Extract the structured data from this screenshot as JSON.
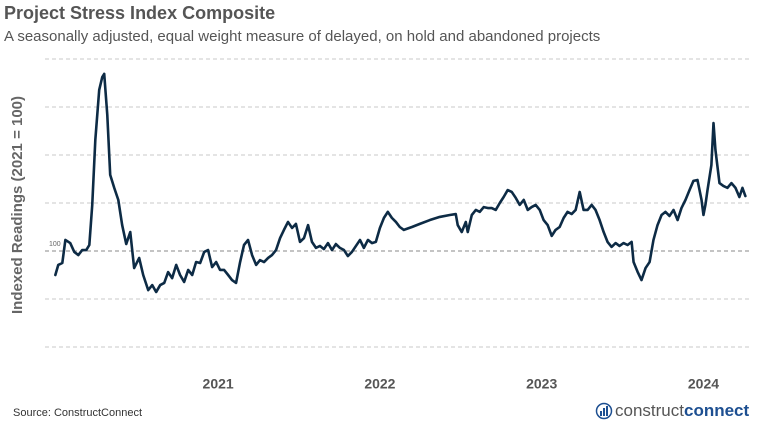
{
  "chart_data": {
    "type": "line",
    "title": "Project Stress Index Composite",
    "subtitle": "A seasonally adjusted, equal weight measure of delayed, on hold and abandoned projects",
    "y_label": "Indexed Readings (2021 = 100)",
    "source": "Source: ConstructConnect",
    "logo": [
      "construct",
      "connect"
    ],
    "color": "#0d2b45",
    "grid": true,
    "grid_values": [
      60,
      80,
      100,
      120,
      140,
      160,
      180
    ],
    "ylim": [
      55,
      188
    ],
    "yticks": [
      100
    ],
    "xlim": [
      2019.93,
      2024.3
    ],
    "xticks": [
      2021,
      2022,
      2023,
      2024
    ],
    "x": [
      2019.994,
      2020.012,
      2020.037,
      2020.056,
      2020.086,
      2020.111,
      2020.136,
      2020.16,
      2020.185,
      2020.204,
      2020.222,
      2020.241,
      2020.265,
      2020.284,
      2020.296,
      2020.315,
      2020.333,
      2020.358,
      2020.383,
      2020.407,
      2020.432,
      2020.457,
      2020.481,
      2020.512,
      2020.537,
      2020.568,
      2020.593,
      2020.617,
      2020.642,
      2020.667,
      2020.691,
      2020.716,
      2020.741,
      2020.765,
      2020.79,
      2020.815,
      2020.84,
      2020.864,
      2020.889,
      2020.914,
      2020.938,
      2020.963,
      2020.988,
      2021.012,
      2021.037,
      2021.062,
      2021.086,
      2021.111,
      2021.136,
      2021.16,
      2021.185,
      2021.21,
      2021.235,
      2021.259,
      2021.284,
      2021.309,
      2021.333,
      2021.358,
      2021.383,
      2021.407,
      2021.432,
      2021.457,
      2021.481,
      2021.506,
      2021.531,
      2021.556,
      2021.58,
      2021.605,
      2021.63,
      2021.654,
      2021.679,
      2021.704,
      2021.728,
      2021.753,
      2021.778,
      2021.802,
      2021.827,
      2021.852,
      2021.877,
      2021.901,
      2021.926,
      2021.951,
      2021.975,
      2022.0,
      2022.025,
      2022.049,
      2022.074,
      2022.099,
      2022.123,
      2022.148,
      2022.198,
      2022.247,
      2022.309,
      2022.37,
      2022.432,
      2022.469,
      2022.481,
      2022.506,
      2022.531,
      2022.543,
      2022.568,
      2022.593,
      2022.617,
      2022.642,
      2022.667,
      2022.691,
      2022.716,
      2022.741,
      2022.765,
      2022.79,
      2022.815,
      2022.84,
      2022.864,
      2022.889,
      2022.914,
      2022.938,
      2022.963,
      2022.988,
      2023.012,
      2023.037,
      2023.062,
      2023.086,
      2023.111,
      2023.136,
      2023.16,
      2023.185,
      2023.21,
      2023.235,
      2023.259,
      2023.284,
      2023.309,
      2023.333,
      2023.358,
      2023.383,
      2023.407,
      2023.432,
      2023.457,
      2023.481,
      2023.506,
      2023.531,
      2023.556,
      2023.568,
      2023.593,
      2023.617,
      2023.642,
      2023.667,
      2023.691,
      2023.716,
      2023.741,
      2023.765,
      2023.79,
      2023.815,
      2023.84,
      2023.864,
      2023.889,
      2023.914,
      2023.938,
      2023.963,
      2023.988,
      2024.0,
      2024.012,
      2024.025,
      2024.049,
      2024.062,
      2024.074,
      2024.099,
      2024.123,
      2024.148,
      2024.173,
      2024.198,
      2024.222,
      2024.241,
      2024.259
    ],
    "values": [
      90.0,
      94.2,
      95.0,
      104.6,
      103.3,
      99.6,
      98.3,
      100.4,
      100.4,
      102.5,
      119.2,
      146.3,
      167.1,
      172.5,
      173.8,
      156.7,
      131.7,
      126.3,
      121.3,
      110.8,
      102.9,
      107.9,
      92.9,
      97.1,
      90.0,
      83.7,
      85.8,
      82.9,
      85.8,
      86.7,
      91.2,
      88.7,
      94.2,
      90.0,
      87.1,
      92.1,
      90.0,
      95.4,
      95.0,
      99.6,
      100.4,
      93.3,
      95.4,
      92.1,
      92.1,
      90.0,
      87.9,
      86.7,
      95.4,
      102.5,
      104.6,
      98.3,
      94.2,
      96.2,
      95.4,
      97.1,
      98.3,
      100.4,
      105.4,
      108.8,
      112.1,
      109.6,
      111.3,
      103.8,
      105.4,
      110.8,
      103.8,
      101.3,
      102.1,
      100.8,
      103.3,
      100.4,
      102.9,
      101.3,
      100.4,
      97.9,
      99.6,
      102.1,
      104.6,
      101.3,
      104.6,
      103.3,
      103.8,
      109.6,
      113.8,
      116.3,
      113.8,
      112.1,
      110.0,
      108.8,
      110.0,
      111.3,
      112.9,
      114.2,
      115.0,
      115.4,
      110.8,
      107.9,
      112.1,
      107.9,
      115.0,
      117.1,
      116.3,
      118.3,
      117.9,
      117.9,
      117.1,
      120.0,
      122.5,
      125.4,
      124.6,
      122.1,
      119.2,
      121.3,
      117.1,
      118.3,
      119.2,
      117.1,
      112.9,
      110.8,
      106.3,
      108.8,
      110.0,
      113.8,
      116.3,
      115.4,
      117.1,
      124.6,
      117.1,
      117.1,
      119.2,
      117.1,
      112.9,
      107.9,
      103.8,
      101.7,
      103.3,
      102.1,
      103.3,
      102.5,
      103.8,
      95.4,
      91.3,
      87.9,
      92.9,
      95.4,
      104.6,
      110.8,
      115.0,
      116.3,
      114.6,
      117.1,
      112.9,
      117.9,
      121.3,
      125.4,
      129.2,
      129.6,
      121.3,
      115.0,
      119.2,
      125.4,
      135.8,
      153.3,
      142.1,
      128.3,
      127.1,
      126.3,
      128.3,
      126.3,
      122.5,
      126.3,
      122.9
    ]
  }
}
